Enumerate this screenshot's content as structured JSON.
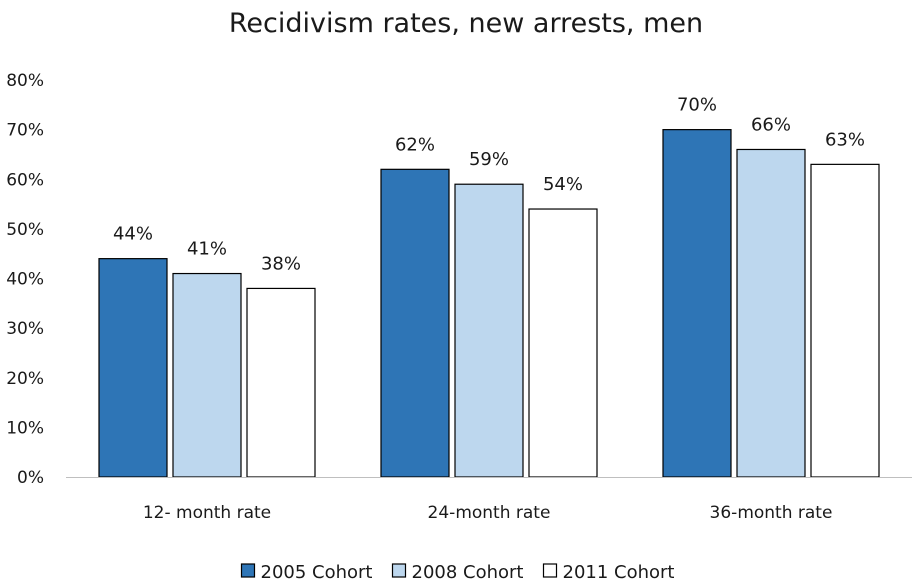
{
  "chart_data": {
    "type": "bar",
    "title": "Recidivism rates, new arrests, men",
    "xlabel": "",
    "ylabel": "",
    "categories": [
      "12- month rate",
      "24-month rate",
      "36-month rate"
    ],
    "series": [
      {
        "name": "2005 Cohort",
        "values": [
          44,
          62,
          70
        ],
        "color": "#2E75B6"
      },
      {
        "name": "2008 Cohort",
        "values": [
          41,
          59,
          66
        ],
        "color": "#BDD7EE"
      },
      {
        "name": "2011 Cohort",
        "values": [
          38,
          54,
          63
        ],
        "color": "#FFFFFF"
      }
    ],
    "ylim": [
      0,
      80
    ],
    "yticks": [
      0,
      10,
      20,
      30,
      40,
      50,
      60,
      70,
      80
    ],
    "ytick_labels": [
      "0%",
      "10%",
      "20%",
      "30%",
      "40%",
      "50%",
      "60%",
      "70%",
      "80%"
    ],
    "value_suffix": "%",
    "bar_outline": "#000000",
    "grid": false,
    "legend_position": "bottom"
  }
}
